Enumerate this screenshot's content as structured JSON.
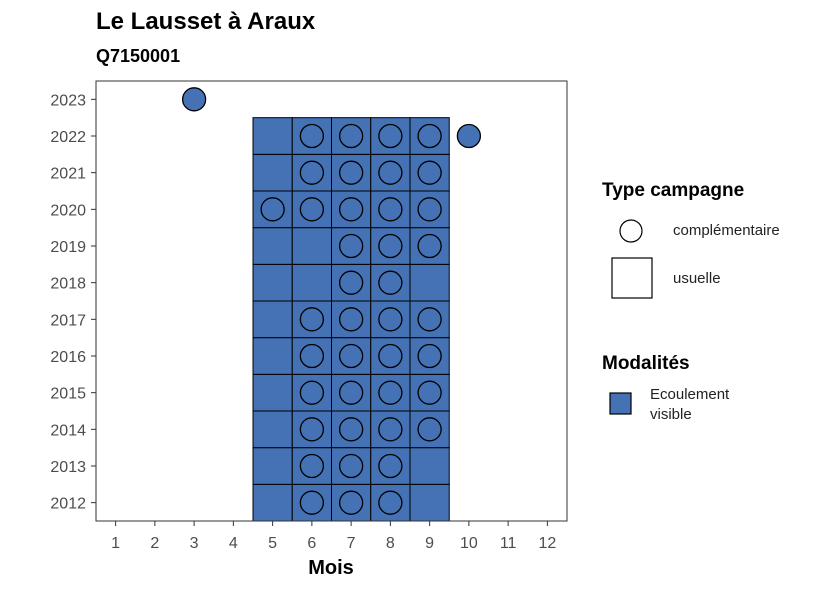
{
  "chart_data": {
    "type": "scatter",
    "title": "Le Lausset à Araux",
    "subtitle": "Q7150001",
    "xlabel": "Mois",
    "ylabel": "",
    "xlim": [
      0.5,
      12.5
    ],
    "ylim": [
      2011.5,
      2023.5
    ],
    "x_ticks": [
      1,
      2,
      3,
      4,
      5,
      6,
      7,
      8,
      9,
      10,
      11,
      12
    ],
    "y_ticks": [
      2012,
      2013,
      2014,
      2015,
      2016,
      2017,
      2018,
      2019,
      2020,
      2021,
      2022,
      2023
    ],
    "grid": false,
    "fill_color": "#4472B4",
    "series": [
      {
        "campaign": "usuelle",
        "modality": "Ecoulement visible",
        "shape": "square",
        "points": [
          [
            5,
            2012
          ],
          [
            6,
            2012
          ],
          [
            7,
            2012
          ],
          [
            8,
            2012
          ],
          [
            9,
            2012
          ],
          [
            5,
            2013
          ],
          [
            6,
            2013
          ],
          [
            7,
            2013
          ],
          [
            8,
            2013
          ],
          [
            9,
            2013
          ],
          [
            5,
            2014
          ],
          [
            6,
            2014
          ],
          [
            7,
            2014
          ],
          [
            8,
            2014
          ],
          [
            9,
            2014
          ],
          [
            5,
            2015
          ],
          [
            6,
            2015
          ],
          [
            7,
            2015
          ],
          [
            8,
            2015
          ],
          [
            9,
            2015
          ],
          [
            5,
            2016
          ],
          [
            6,
            2016
          ],
          [
            7,
            2016
          ],
          [
            8,
            2016
          ],
          [
            9,
            2016
          ],
          [
            5,
            2017
          ],
          [
            6,
            2017
          ],
          [
            7,
            2017
          ],
          [
            8,
            2017
          ],
          [
            9,
            2017
          ],
          [
            5,
            2018
          ],
          [
            6,
            2018
          ],
          [
            7,
            2018
          ],
          [
            8,
            2018
          ],
          [
            9,
            2018
          ],
          [
            5,
            2019
          ],
          [
            6,
            2019
          ],
          [
            7,
            2019
          ],
          [
            8,
            2019
          ],
          [
            9,
            2019
          ],
          [
            5,
            2020
          ],
          [
            6,
            2020
          ],
          [
            7,
            2020
          ],
          [
            8,
            2020
          ],
          [
            9,
            2020
          ],
          [
            5,
            2021
          ],
          [
            6,
            2021
          ],
          [
            7,
            2021
          ],
          [
            8,
            2021
          ],
          [
            9,
            2021
          ],
          [
            5,
            2022
          ],
          [
            6,
            2022
          ],
          [
            7,
            2022
          ],
          [
            8,
            2022
          ],
          [
            9,
            2022
          ]
        ]
      },
      {
        "campaign": "complémentaire",
        "modality": "Ecoulement visible",
        "shape": "circle",
        "points": [
          [
            6,
            2012
          ],
          [
            7,
            2012
          ],
          [
            8,
            2012
          ],
          [
            6,
            2013
          ],
          [
            7,
            2013
          ],
          [
            8,
            2013
          ],
          [
            6,
            2014
          ],
          [
            7,
            2014
          ],
          [
            8,
            2014
          ],
          [
            9,
            2014
          ],
          [
            6,
            2015
          ],
          [
            7,
            2015
          ],
          [
            8,
            2015
          ],
          [
            9,
            2015
          ],
          [
            6,
            2016
          ],
          [
            7,
            2016
          ],
          [
            8,
            2016
          ],
          [
            9,
            2016
          ],
          [
            6,
            2017
          ],
          [
            7,
            2017
          ],
          [
            8,
            2017
          ],
          [
            9,
            2017
          ],
          [
            7,
            2018
          ],
          [
            8,
            2018
          ],
          [
            7,
            2019
          ],
          [
            8,
            2019
          ],
          [
            9,
            2019
          ],
          [
            5,
            2020
          ],
          [
            6,
            2020
          ],
          [
            7,
            2020
          ],
          [
            8,
            2020
          ],
          [
            9,
            2020
          ],
          [
            6,
            2021
          ],
          [
            7,
            2021
          ],
          [
            8,
            2021
          ],
          [
            9,
            2021
          ],
          [
            6,
            2022
          ],
          [
            7,
            2022
          ],
          [
            8,
            2022
          ],
          [
            9,
            2022
          ],
          [
            10,
            2022
          ],
          [
            3,
            2023
          ]
        ]
      }
    ],
    "legend": {
      "position": "right",
      "campaign_title": "Type campagne",
      "campaign_items": [
        {
          "shape": "circle",
          "label": "complémentaire"
        },
        {
          "shape": "square",
          "label": "usuelle"
        }
      ],
      "modality_title": "Modalités",
      "modality_items": [
        {
          "label_line1": "Ecoulement",
          "label_line2": "visible",
          "color": "#4472B4"
        }
      ]
    }
  }
}
